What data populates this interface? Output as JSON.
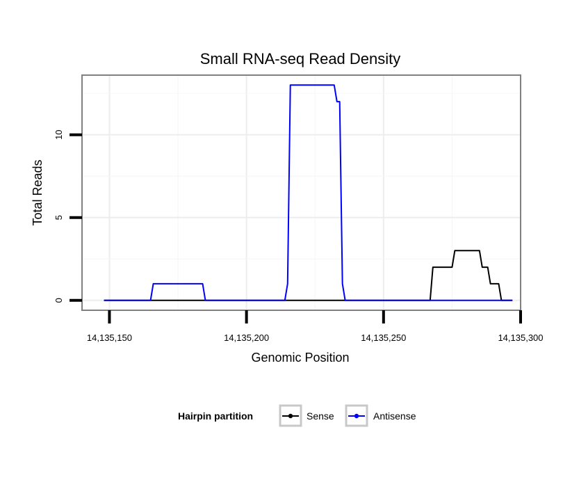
{
  "chart_data": {
    "type": "line",
    "title": "Small RNA-seq Read Density",
    "xlabel": "Genomic Position",
    "ylabel": "Total Reads",
    "xlim": [
      14135140,
      14135300
    ],
    "ylim": [
      -0.6,
      13.6
    ],
    "x_ticks": [
      14135150,
      14135200,
      14135250,
      14135300
    ],
    "x_tick_labels": [
      "14,135,150",
      "14,135,200",
      "14,135,250",
      "14,135,300"
    ],
    "y_ticks": [
      0,
      5,
      10
    ],
    "y_tick_labels": [
      "0",
      "5",
      "10"
    ],
    "grid": true,
    "legend": {
      "title": "Hairpin partition",
      "position": "bottom"
    },
    "series": [
      {
        "name": "Sense",
        "color": "#000000",
        "x": [
          14135148,
          14135267,
          14135268,
          14135275,
          14135276,
          14135285,
          14135286,
          14135288,
          14135289,
          14135292,
          14135293,
          14135297
        ],
        "y": [
          0,
          0,
          2,
          2,
          3,
          3,
          2,
          2,
          1,
          1,
          0,
          0
        ]
      },
      {
        "name": "Antisense",
        "color": "#0000ff",
        "x": [
          14135148,
          14135165,
          14135166,
          14135184,
          14135185,
          14135214,
          14135215,
          14135216,
          14135232,
          14135233,
          14135234,
          14135235,
          14135236,
          14135297
        ],
        "y": [
          0,
          0,
          1,
          1,
          0,
          0,
          1,
          13,
          13,
          12,
          12,
          1,
          0,
          0
        ]
      }
    ]
  }
}
